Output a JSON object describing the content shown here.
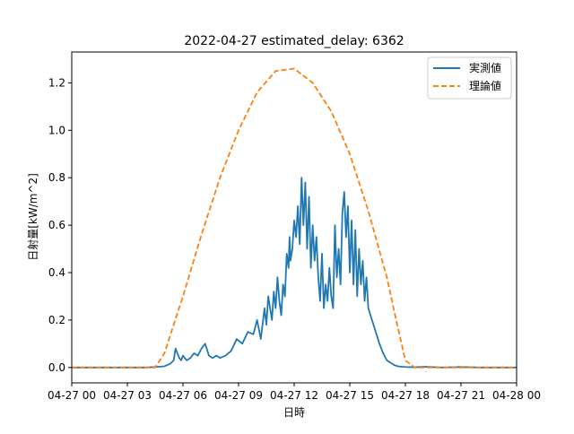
{
  "chart_data": {
    "type": "line",
    "title": "2022-04-27 estimated_delay: 6362",
    "xlabel": "日時",
    "ylabel": "日射量[kW/m^2]",
    "x_domain_hours": [
      0,
      24
    ],
    "ylim": [
      -0.065,
      1.33
    ],
    "y_ticks": [
      0.0,
      0.2,
      0.4,
      0.6,
      0.8,
      1.0,
      1.2
    ],
    "y_tick_labels": [
      "0.0",
      "0.2",
      "0.4",
      "0.6",
      "0.8",
      "1.0",
      "1.2"
    ],
    "x_ticks_hours": [
      0,
      3,
      6,
      9,
      12,
      15,
      18,
      21,
      24
    ],
    "x_tick_labels": [
      "04-27 00",
      "04-27 03",
      "04-27 06",
      "04-27 09",
      "04-27 12",
      "04-27 15",
      "04-27 18",
      "04-27 21",
      "04-28 00"
    ],
    "legend_position": "top-right",
    "grid": false,
    "series": [
      {
        "name": "実測値",
        "color": "#1f77b4",
        "style": "solid",
        "x_hours": [
          0,
          1,
          2,
          3,
          4,
          4.5,
          5,
          5.3,
          5.5,
          5.6,
          5.8,
          5.9,
          6.0,
          6.2,
          6.4,
          6.6,
          6.8,
          7.0,
          7.2,
          7.4,
          7.6,
          7.8,
          8.0,
          8.3,
          8.6,
          8.9,
          9.2,
          9.5,
          9.8,
          10.0,
          10.2,
          10.4,
          10.5,
          10.6,
          10.8,
          10.9,
          11.0,
          11.1,
          11.2,
          11.3,
          11.4,
          11.5,
          11.6,
          11.7,
          11.75,
          11.8,
          11.9,
          12.0,
          12.1,
          12.2,
          12.3,
          12.4,
          12.5,
          12.6,
          12.7,
          12.8,
          12.9,
          13.0,
          13.1,
          13.2,
          13.3,
          13.4,
          13.5,
          13.6,
          13.7,
          13.8,
          13.9,
          14.0,
          14.1,
          14.2,
          14.3,
          14.4,
          14.5,
          14.6,
          14.7,
          14.8,
          14.9,
          15.0,
          15.1,
          15.2,
          15.3,
          15.4,
          15.5,
          15.6,
          15.7,
          15.8,
          15.9,
          16.0,
          16.2,
          16.4,
          16.6,
          16.8,
          17.0,
          17.2,
          17.4,
          17.6,
          17.8,
          18.0,
          18.5,
          19,
          20,
          21,
          22,
          23,
          24
        ],
        "values": [
          0.0,
          0.0,
          0.0,
          0.0,
          0.0,
          0.002,
          0.005,
          0.015,
          0.03,
          0.08,
          0.04,
          0.03,
          0.05,
          0.03,
          0.04,
          0.06,
          0.05,
          0.08,
          0.1,
          0.05,
          0.04,
          0.05,
          0.04,
          0.05,
          0.07,
          0.12,
          0.1,
          0.15,
          0.14,
          0.2,
          0.12,
          0.25,
          0.18,
          0.3,
          0.2,
          0.32,
          0.25,
          0.38,
          0.28,
          0.22,
          0.35,
          0.3,
          0.48,
          0.42,
          0.55,
          0.45,
          0.5,
          0.62,
          0.55,
          0.68,
          0.52,
          0.8,
          0.6,
          0.78,
          0.5,
          0.72,
          0.42,
          0.6,
          0.45,
          0.55,
          0.38,
          0.28,
          0.48,
          0.25,
          0.35,
          0.28,
          0.42,
          0.3,
          0.25,
          0.6,
          0.38,
          0.5,
          0.35,
          0.65,
          0.74,
          0.55,
          0.68,
          0.4,
          0.62,
          0.35,
          0.58,
          0.3,
          0.5,
          0.35,
          0.45,
          0.28,
          0.38,
          0.25,
          0.2,
          0.15,
          0.1,
          0.06,
          0.03,
          0.02,
          0.01,
          0.005,
          0.003,
          0.002,
          0.001,
          0.003,
          0.0,
          0.002,
          0.0,
          0.0,
          0.0
        ]
      },
      {
        "name": "理論値",
        "color": "#ff7f0e",
        "style": "dashed",
        "x_hours": [
          0,
          1,
          2,
          3,
          4,
          4.5,
          5,
          6,
          7,
          8,
          9,
          10,
          11,
          12,
          13,
          14,
          15,
          16,
          17,
          17.5,
          18,
          18.5,
          19,
          20,
          21,
          22,
          23,
          24
        ],
        "values": [
          0.0,
          0.0,
          0.0,
          0.0,
          0.0,
          0.0,
          0.06,
          0.3,
          0.56,
          0.8,
          1.0,
          1.16,
          1.25,
          1.26,
          1.2,
          1.08,
          0.9,
          0.66,
          0.38,
          0.2,
          0.03,
          0.0,
          0.0,
          0.0,
          0.0,
          0.0,
          0.0,
          0.0
        ]
      }
    ]
  }
}
